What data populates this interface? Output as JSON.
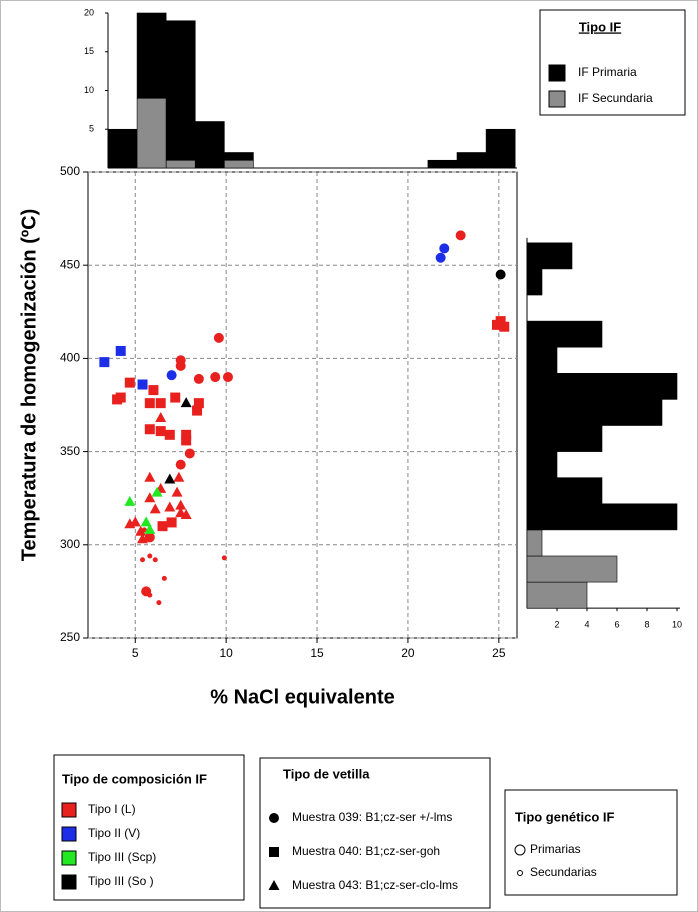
{
  "chart_data": [
    {
      "type": "scatter",
      "x_label": "% NaCl equivalente",
      "y_label": "Temperatura de homogenización (ºC)",
      "xlim": [
        2.4,
        26
      ],
      "ylim": [
        250,
        500
      ],
      "xticks": [
        5,
        10,
        15,
        20,
        25
      ],
      "yticks": [
        250,
        300,
        350,
        400,
        450,
        500
      ],
      "grid": true,
      "legend_title": "Tipo de composición IF",
      "series": [
        {
          "name": "Tipo I (L)",
          "color": "#e8211f",
          "x": [
            22.9,
            9.6,
            7.5,
            7.5,
            10.1,
            9.4,
            8.5,
            8.4,
            8.0,
            7.5,
            5.6,
            5.8,
            5.4,
            6.1,
            5.8,
            6.6,
            5.8,
            6.3,
            9.9,
            5.5,
            4.7,
            4.2,
            4.0,
            6.0,
            5.8,
            6.4,
            7.2,
            8.5,
            8.4,
            5.8,
            6.4,
            6.9,
            7.8,
            7.8,
            6.5,
            7.0,
            25.1,
            24.9,
            25.3,
            6.4,
            5.8,
            7.4,
            6.4,
            7.3,
            6.9,
            7.5,
            7.8,
            5.8,
            5.0,
            4.7,
            5.3,
            5.4,
            7.5,
            6.1
          ],
          "values": [
            466,
            411,
            399,
            396,
            390,
            390,
            389,
            373,
            349,
            343,
            275,
            304,
            292,
            292,
            294,
            282,
            273,
            269,
            293,
            308,
            387,
            379,
            378,
            383,
            376,
            376,
            379,
            376,
            372,
            362,
            361,
            359,
            359,
            356,
            310,
            312,
            420,
            418,
            417,
            368,
            336,
            336,
            330,
            328,
            320,
            317,
            316,
            325,
            312,
            311,
            307,
            303,
            321,
            319
          ],
          "shapes": [
            "circle",
            "circle",
            "circle",
            "circle",
            "circle",
            "circle",
            "circle",
            "circle",
            "circle",
            "circle",
            "circle",
            "circle",
            "circle",
            "circle",
            "circle",
            "circle",
            "circle",
            "circle",
            "circle",
            "circle",
            "square",
            "square",
            "square",
            "square",
            "square",
            "square",
            "square",
            "square",
            "square",
            "square",
            "square",
            "square",
            "square",
            "square",
            "square",
            "square",
            "square",
            "square",
            "square",
            "triangle",
            "triangle",
            "triangle",
            "triangle",
            "triangle",
            "triangle",
            "triangle",
            "triangle",
            "triangle",
            "triangle",
            "triangle",
            "triangle",
            "triangle",
            "triangle",
            "triangle"
          ],
          "sizes": [
            "large",
            "large",
            "large",
            "large",
            "large",
            "large",
            "large",
            "large",
            "large",
            "large",
            "large",
            "large",
            "small",
            "small",
            "small",
            "small",
            "small",
            "small",
            "small",
            "small",
            "large",
            "large",
            "large",
            "large",
            "large",
            "large",
            "large",
            "large",
            "large",
            "large",
            "large",
            "large",
            "large",
            "large",
            "large",
            "large",
            "large",
            "large",
            "large",
            "large",
            "large",
            "large",
            "large",
            "large",
            "large",
            "large",
            "large",
            "large",
            "large",
            "large",
            "large",
            "large",
            "large",
            "large"
          ]
        },
        {
          "name": "Tipo II (V)",
          "color": "#1c2ee8",
          "x": [
            4.2,
            3.3,
            5.4,
            7.0,
            22.0,
            21.8
          ],
          "values": [
            404,
            398,
            386,
            391,
            459,
            454
          ],
          "shapes": [
            "square",
            "square",
            "square",
            "circle",
            "circle",
            "circle"
          ],
          "sizes": [
            "large",
            "large",
            "large",
            "large",
            "large",
            "large"
          ]
        },
        {
          "name": "Tipo III (Scp)",
          "color": "#22e822",
          "x": [
            4.7,
            6.2,
            5.6,
            5.8
          ],
          "values": [
            323,
            328,
            312,
            308
          ],
          "shapes": [
            "triangle",
            "triangle",
            "triangle",
            "triangle"
          ],
          "sizes": [
            "large",
            "large",
            "large",
            "large"
          ]
        },
        {
          "name": "Tipo III (So )",
          "color": "#000000",
          "x": [
            25.1,
            7.8,
            6.9
          ],
          "values": [
            445,
            376,
            335
          ],
          "shapes": [
            "circle",
            "triangle",
            "triangle"
          ],
          "sizes": [
            "large",
            "large",
            "large"
          ]
        }
      ],
      "shape_legend": {
        "title": "Tipo de vetilla",
        "items": [
          {
            "label": "Muestra 039: B1;cz-ser +/-lms",
            "shape": "circle"
          },
          {
            "label": "Muestra 040: B1;cz-ser-goh",
            "shape": "square"
          },
          {
            "label": "Muestra 043: B1;cz-ser-clo-lms",
            "shape": "triangle"
          }
        ]
      },
      "size_legend": {
        "title": "Tipo genético IF",
        "items": [
          {
            "label": "Primarias",
            "size": "large"
          },
          {
            "label": "Secundarias",
            "size": "small"
          }
        ]
      }
    },
    {
      "type": "histogram",
      "orientation": "vertical",
      "legend_title": "Tipo IF",
      "bins": [
        3.5,
        5.1,
        6.7,
        8.3,
        9.9,
        11.5,
        13.1,
        14.7,
        16.3,
        17.9,
        19.5,
        21.1,
        22.7,
        24.3,
        25.9
      ],
      "xlim": [
        2.4,
        26
      ],
      "ylim": [
        0,
        20
      ],
      "yticks": [
        5,
        10,
        15,
        20
      ],
      "series": [
        {
          "name": "IF Primaria",
          "color": "#000000",
          "values": [
            5,
            11,
            18,
            6,
            1,
            0,
            0,
            0,
            0,
            0,
            0,
            1,
            2,
            5
          ]
        },
        {
          "name": "IF Secundaria",
          "color": "#8c8c8c",
          "values": [
            0,
            9,
            1,
            0,
            1,
            0,
            0,
            0,
            0,
            0,
            0,
            0,
            0,
            0
          ]
        }
      ]
    },
    {
      "type": "histogram",
      "orientation": "horizontal",
      "bins": [
        266,
        280,
        294,
        308,
        322,
        336,
        350,
        364,
        378,
        392,
        406,
        420,
        434,
        448,
        462
      ],
      "ylim": [
        250,
        500
      ],
      "xlim": [
        0,
        10.2
      ],
      "xticks": [
        2,
        4,
        6,
        8,
        10
      ],
      "series": [
        {
          "color": "#000000",
          "values": [
            0,
            0,
            0,
            10,
            5,
            2,
            5,
            9,
            10,
            2,
            5,
            0,
            1,
            3
          ]
        },
        {
          "color": "#8c8c8c",
          "values": [
            4,
            6,
            1,
            0,
            0,
            0,
            0,
            0,
            0,
            0,
            0,
            0,
            0,
            0
          ]
        }
      ]
    }
  ]
}
